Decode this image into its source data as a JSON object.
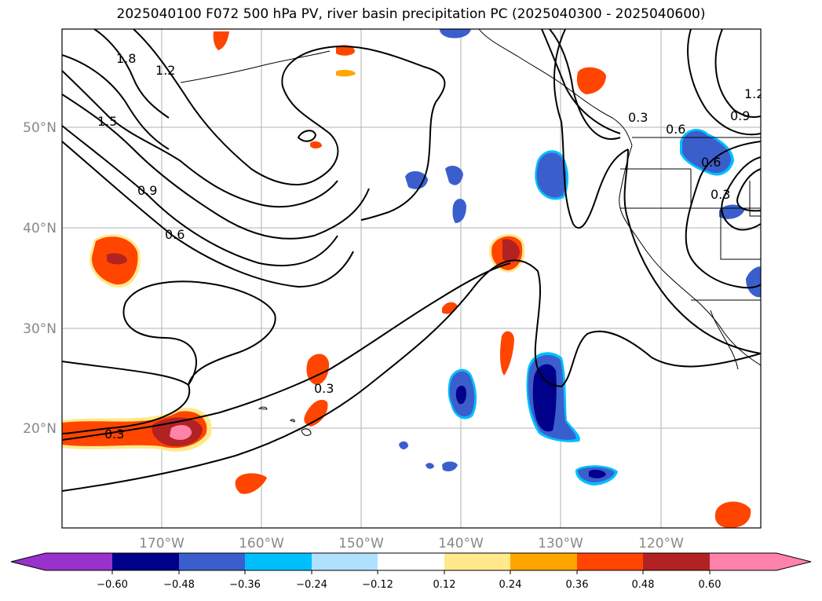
{
  "title": "2025040100 F072 500 hPa PV, river basin precipitation PC (2025040300 - 2025040600)",
  "map": {
    "lat_labels": [
      "50°N",
      "40°N",
      "30°N",
      "20°N"
    ],
    "lon_labels": [
      "170°W",
      "160°W",
      "150°W",
      "140°W",
      "130°W",
      "120°W"
    ]
  },
  "pv_contour_labels": [
    "1.8",
    "1.2",
    "1.5",
    "0.9",
    "0.6",
    "0.3",
    "0.3",
    "0.6",
    "0.9",
    "1.2",
    "0.3",
    "0.6",
    "0.3"
  ],
  "colorbar": {
    "ticks": [
      "−0.60",
      "−0.48",
      "−0.36",
      "−0.24",
      "−0.12",
      "0.12",
      "0.24",
      "0.36",
      "0.48",
      "0.60"
    ],
    "colors": [
      "#9932cc",
      "#00008b",
      "#3a5fcd",
      "#00bfff",
      "#b0e2ff",
      "#ffffff",
      "#ffe98a",
      "#ffa500",
      "#ff4500",
      "#b22222",
      "#ff82ab"
    ]
  }
}
